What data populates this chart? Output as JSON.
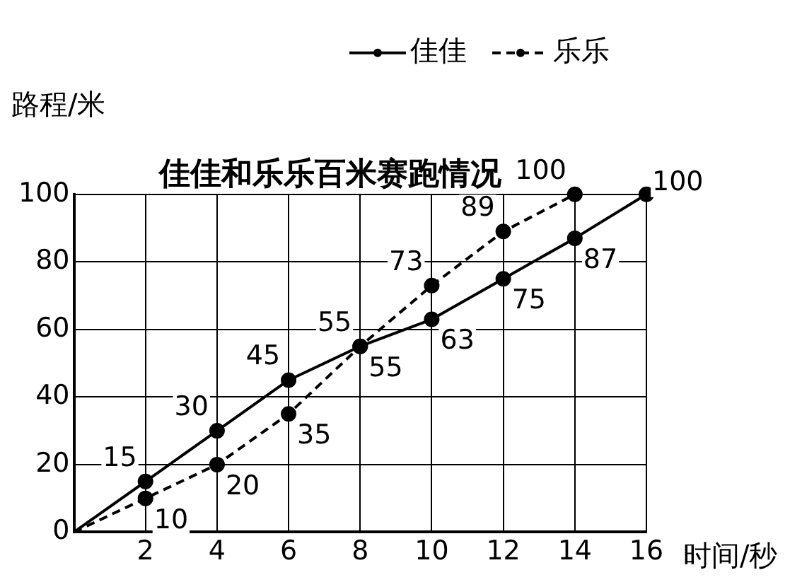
{
  "chart_data": {
    "type": "line",
    "title": "佳佳和乐乐百米赛跑情况",
    "xlabel": "时间/秒",
    "ylabel": "路程/米",
    "xlim": [
      0,
      16
    ],
    "ylim": [
      0,
      100
    ],
    "xticks": [
      {
        "value": 0,
        "label": null
      },
      2,
      4,
      6,
      8,
      10,
      12,
      14,
      16
    ],
    "yticks": [
      0,
      20,
      40,
      60,
      80,
      100
    ],
    "grid": true,
    "legend": "top right",
    "marker": "circle",
    "series": [
      {
        "name": "佳佳",
        "color": "#000000",
        "line_style": "solid",
        "x": [
          0,
          2,
          4,
          6,
          8,
          10,
          12,
          14,
          16
        ],
        "values": [
          0,
          15,
          30,
          45,
          55,
          63,
          75,
          87,
          100
        ],
        "value_labels": [
          null,
          "15",
          "30",
          "45",
          "55",
          "63",
          "75",
          "87",
          "100"
        ]
      },
      {
        "name": "乐乐",
        "color": "#000000",
        "line_style": "dashed",
        "x": [
          0,
          2,
          4,
          6,
          8,
          10,
          12,
          14
        ],
        "values": [
          0,
          10,
          20,
          35,
          55,
          73,
          89,
          100
        ],
        "value_labels": [
          null,
          "10",
          "20",
          "35",
          "55",
          "73",
          "89",
          "100"
        ]
      }
    ]
  }
}
